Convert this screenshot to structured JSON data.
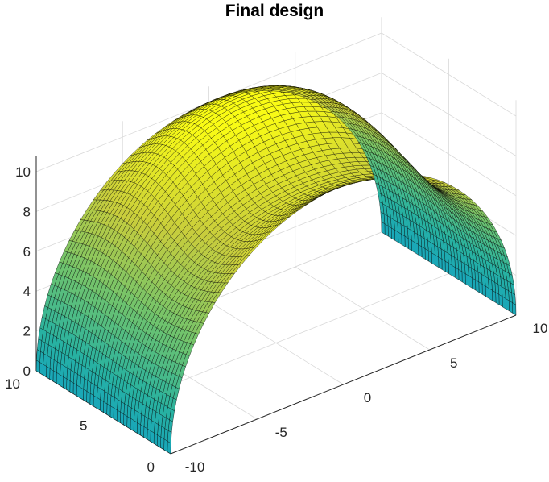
{
  "chart_data": {
    "type": "surface",
    "title": "Final design",
    "colormap": "parula",
    "axes": {
      "x": {
        "label": "",
        "lim": [
          -10,
          10
        ],
        "ticks": [
          -10,
          -5,
          0,
          5,
          10
        ]
      },
      "y": {
        "label": "",
        "lim": [
          0,
          10
        ],
        "ticks": [
          0,
          5,
          10
        ]
      },
      "z": {
        "label": "",
        "lim": [
          0,
          10
        ],
        "ticks": [
          0,
          2,
          4,
          6,
          8,
          10
        ]
      }
    },
    "grid": true,
    "box": false,
    "surface": {
      "description_of_shape": "Arch (half-cylinder) spanning x from -10 to 10 with its axis along y; cross-section radius ~10 with a sinusoidal ripple along y that bends the crest down to ~8.5 and up to ~10.8.",
      "x_extent": [
        -10,
        10
      ],
      "y_extent": [
        0,
        10
      ],
      "z_min": 0,
      "z_max": 10.8,
      "u_cells": 60,
      "v_cells": 40,
      "edgecolor": "#000000"
    }
  }
}
